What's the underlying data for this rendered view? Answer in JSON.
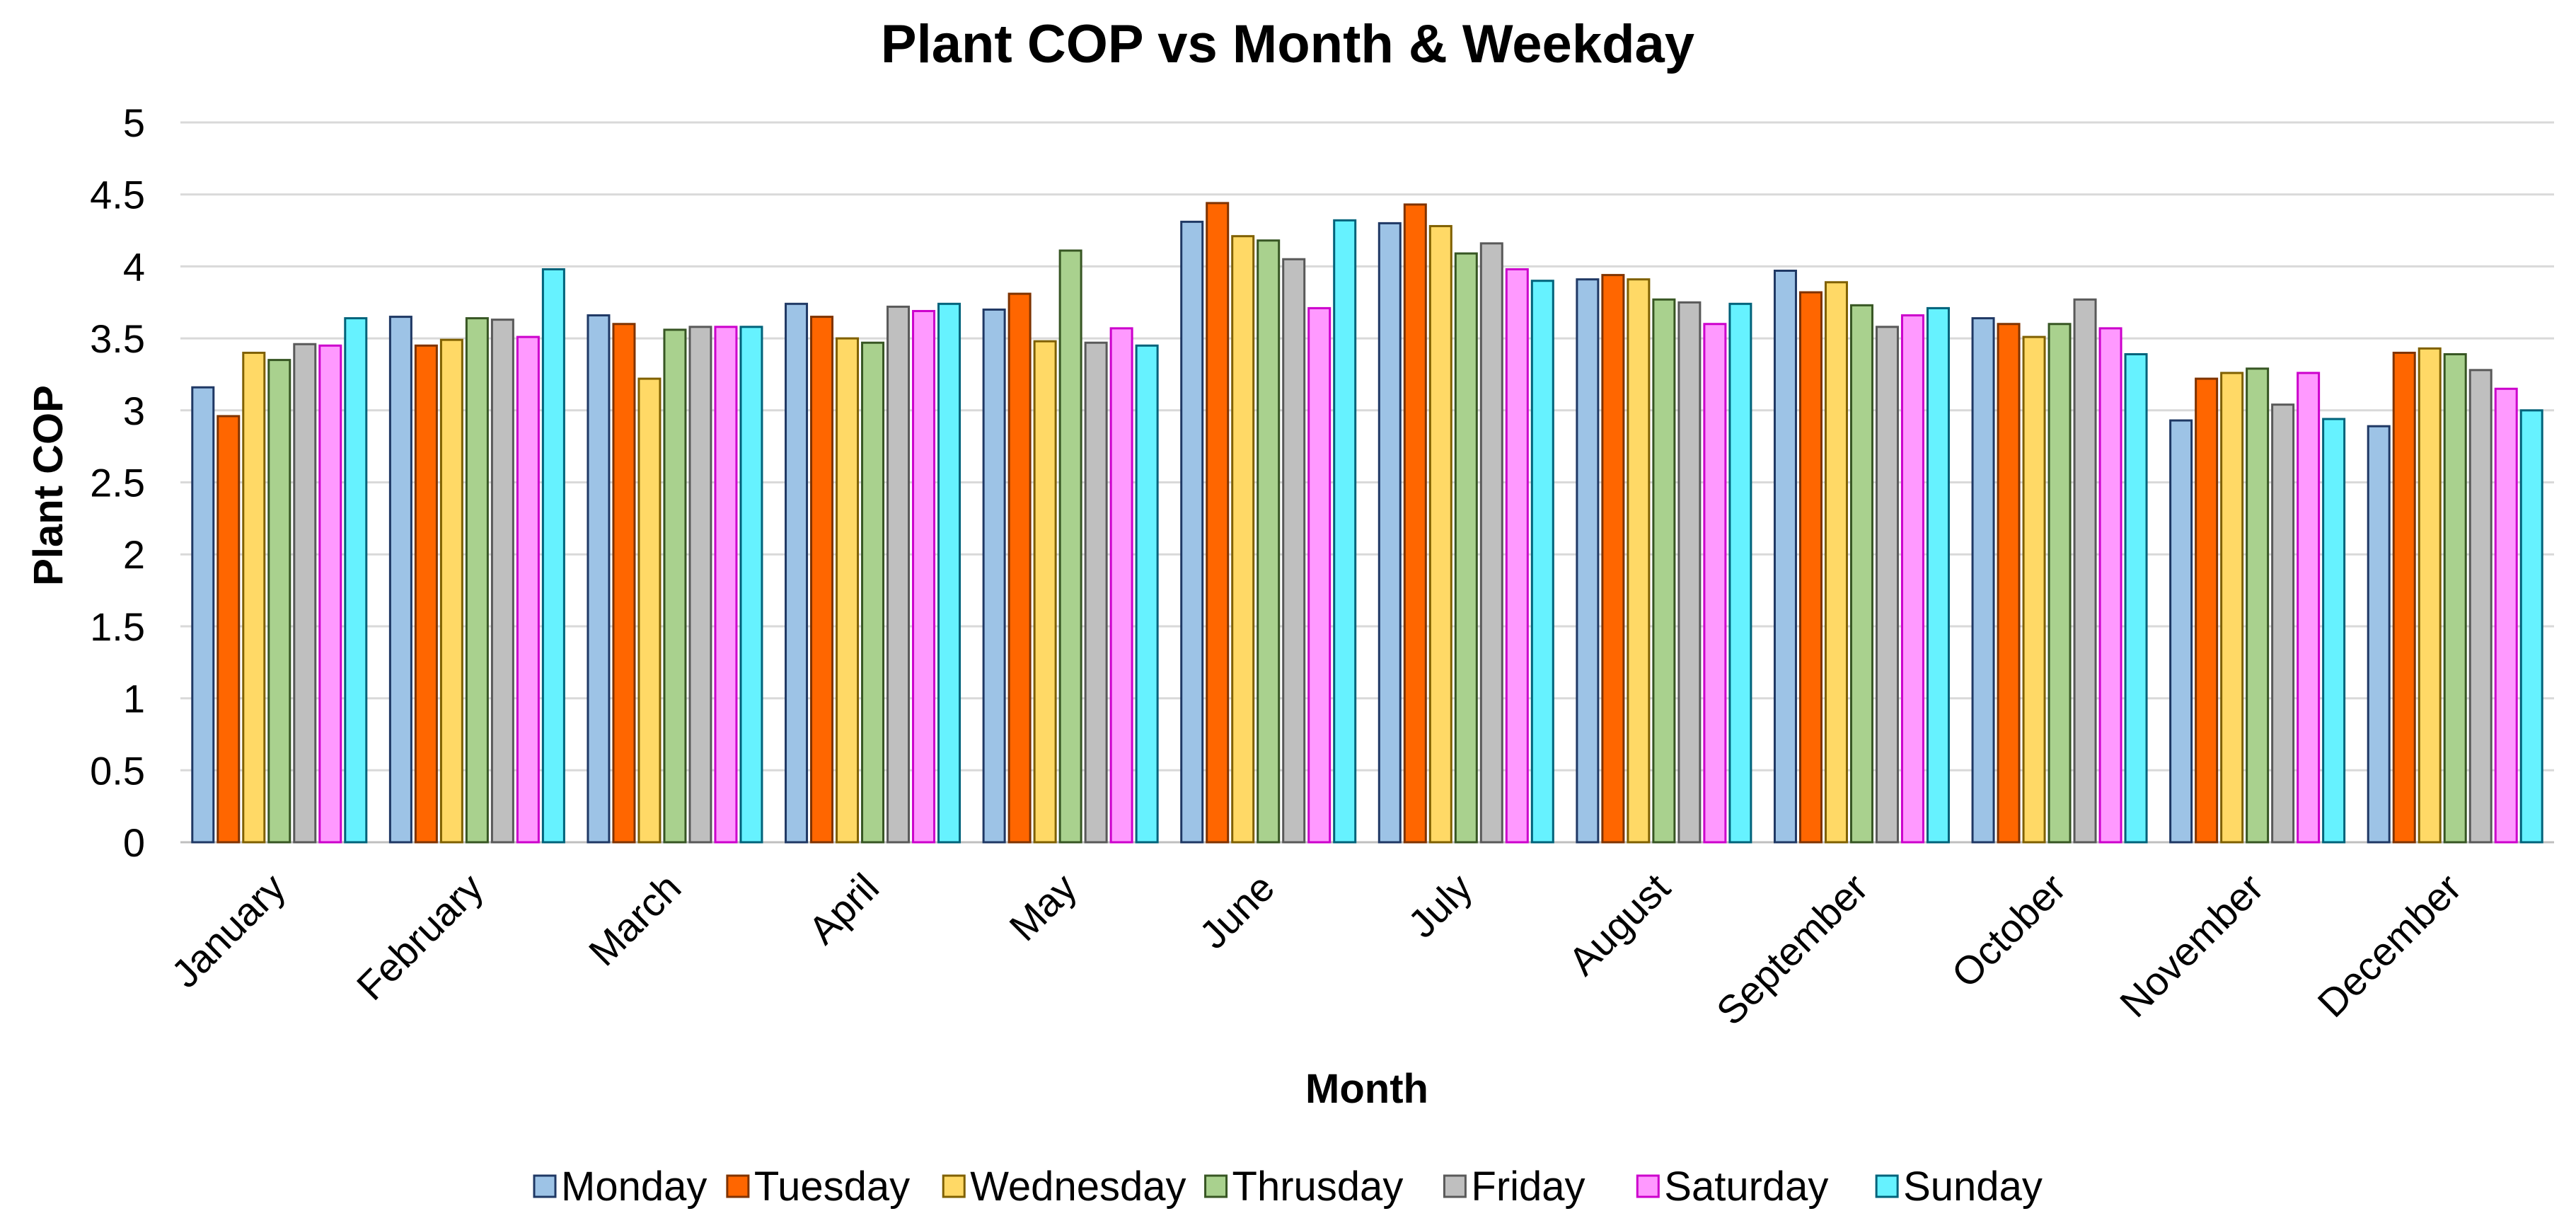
{
  "chart_data": {
    "type": "bar",
    "title": "Plant COP vs Month & Weekday",
    "xlabel": "Month",
    "ylabel": "Plant COP",
    "ylim": [
      0,
      5
    ],
    "yticks": [
      "0",
      "0.5",
      "1",
      "1.5",
      "2",
      "2.5",
      "3",
      "3.5",
      "4",
      "4.5",
      "5"
    ],
    "grid": true,
    "legend_position": "bottom",
    "categories": [
      "January",
      "February",
      "March",
      "April",
      "May",
      "June",
      "July",
      "August",
      "September",
      "October",
      "November",
      "December"
    ],
    "series": [
      {
        "name": "Monday",
        "fill": "#9dc3e6",
        "stroke": "#1f3864",
        "values": [
          3.16,
          3.65,
          3.66,
          3.74,
          3.7,
          4.31,
          4.3,
          3.91,
          3.97,
          3.64,
          2.93,
          2.89
        ]
      },
      {
        "name": "Tuesday",
        "fill": "#ff6600",
        "stroke": "#7f3300",
        "values": [
          2.96,
          3.45,
          3.6,
          3.65,
          3.81,
          4.44,
          4.43,
          3.94,
          3.82,
          3.6,
          3.22,
          3.4
        ]
      },
      {
        "name": "Wednesday",
        "fill": "#ffd966",
        "stroke": "#7f6000",
        "values": [
          3.4,
          3.49,
          3.22,
          3.5,
          3.48,
          4.21,
          4.28,
          3.91,
          3.89,
          3.51,
          3.26,
          3.43
        ]
      },
      {
        "name": "Thrusday",
        "fill": "#a9d18e",
        "stroke": "#375623",
        "values": [
          3.35,
          3.64,
          3.56,
          3.47,
          4.11,
          4.18,
          4.09,
          3.77,
          3.73,
          3.6,
          3.29,
          3.39
        ]
      },
      {
        "name": "Friday",
        "fill": "#bfbfbf",
        "stroke": "#595959",
        "values": [
          3.46,
          3.63,
          3.58,
          3.72,
          3.47,
          4.05,
          4.16,
          3.75,
          3.58,
          3.77,
          3.04,
          3.28
        ]
      },
      {
        "name": "Saturday",
        "fill": "#ff99ff",
        "stroke": "#cc00cc",
        "values": [
          3.45,
          3.51,
          3.58,
          3.69,
          3.57,
          3.71,
          3.98,
          3.6,
          3.66,
          3.57,
          3.26,
          3.15
        ]
      },
      {
        "name": "Sunday",
        "fill": "#66f2ff",
        "stroke": "#00627a",
        "values": [
          3.64,
          3.98,
          3.58,
          3.74,
          3.45,
          4.32,
          3.9,
          3.74,
          3.71,
          3.39,
          2.94,
          3.0
        ]
      }
    ]
  }
}
